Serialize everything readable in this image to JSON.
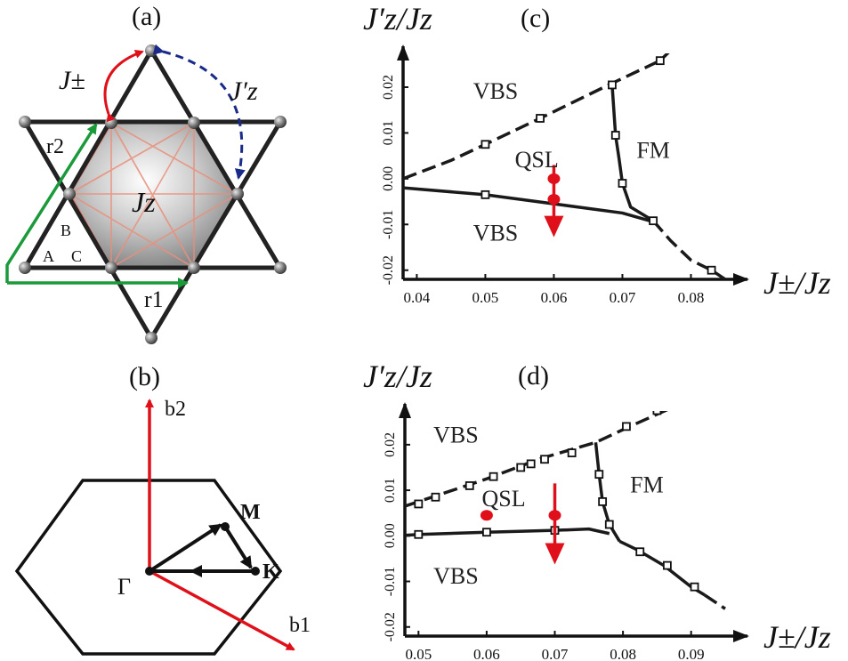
{
  "panels": {
    "a": "(a)",
    "b": "(b)",
    "c": "(c)",
    "d": "(d)"
  },
  "lattice": {
    "j_pm_label": "J±",
    "jz_prime_label": "J′z",
    "jz_label": "Jz",
    "r1_label": "r1",
    "r2_label": "r2",
    "site_a": "A",
    "site_b": "B",
    "site_c": "C"
  },
  "bz": {
    "b1_label": "b1",
    "b2_label": "b2",
    "gamma_label": "Γ",
    "m_label": "M",
    "k_label": "K"
  },
  "axis_labels": {
    "y_num": "J′z",
    "y_den": "Jz",
    "x_num": "J±",
    "x_den": "Jz"
  },
  "phases": {
    "vbs": "VBS",
    "qsl": "QSL",
    "fm": "FM"
  },
  "colors": {
    "red": "#e0101a",
    "green": "#1a9a3a",
    "blue": "#1a2a8a",
    "black": "#111111"
  },
  "chart_data": [
    {
      "id": "c",
      "type": "scatter",
      "xlim": [
        0.038,
        0.085
      ],
      "ylim": [
        -0.022,
        0.027
      ],
      "x_ticks": [
        "0.04",
        "0.05",
        "0.06",
        "0.07",
        "0.08"
      ],
      "x_tick_values": [
        0.04,
        0.05,
        0.06,
        0.07,
        0.08
      ],
      "y_ticks": [
        "-0.02",
        "-0.01",
        "0.00",
        "0.01",
        "0.02"
      ],
      "y_tick_values": [
        -0.02,
        -0.01,
        0.0,
        0.01,
        0.02
      ],
      "series": [
        {
          "style": "dashed",
          "points": [
            [
              0.038,
              0.0
            ],
            [
              0.045,
              0.004
            ],
            [
              0.05,
              0.0075
            ],
            [
              0.058,
              0.0132
            ],
            [
              0.068,
              0.0205
            ],
            [
              0.0755,
              0.0258
            ],
            [
              0.077,
              0.028
            ]
          ]
        },
        {
          "style": "solid",
          "points": [
            [
              0.038,
              -0.002
            ],
            [
              0.05,
              -0.0035
            ],
            [
              0.06,
              -0.0055
            ],
            [
              0.07,
              -0.0075
            ],
            [
              0.074,
              -0.0092
            ]
          ]
        },
        {
          "style": "solid",
          "points": [
            [
              0.0685,
              0.0205
            ],
            [
              0.069,
              0.0095
            ],
            [
              0.0695,
              0.0045
            ],
            [
              0.07,
              -0.001
            ],
            [
              0.0712,
              -0.0062
            ],
            [
              0.0745,
              -0.0092
            ]
          ]
        },
        {
          "style": "dashed",
          "points": [
            [
              0.0745,
              -0.0092
            ],
            [
              0.077,
              -0.0135
            ],
            [
              0.08,
              -0.0178
            ],
            [
              0.083,
              -0.02
            ],
            [
              0.085,
              -0.022
            ]
          ]
        }
      ],
      "markers": [
        [
          0.05,
          0.0075
        ],
        [
          0.058,
          0.0132
        ],
        [
          0.0685,
          0.0205
        ],
        [
          0.0755,
          0.0258
        ],
        [
          0.05,
          -0.0035
        ],
        [
          0.069,
          0.0095
        ],
        [
          0.07,
          -0.001
        ],
        [
          0.0745,
          -0.0092
        ],
        [
          0.083,
          -0.02
        ]
      ],
      "red_points": [
        [
          0.06,
          0.0
        ],
        [
          0.06,
          -0.0045
        ]
      ],
      "red_arrow": {
        "from": [
          0.06,
          0.003
        ],
        "to": [
          0.06,
          -0.012
        ]
      },
      "phase_labels": [
        {
          "text": "VBS",
          "x": 0.0515,
          "y": 0.0175
        },
        {
          "text": "QSL",
          "x": 0.0575,
          "y": 0.0025
        },
        {
          "text": "FM",
          "x": 0.0745,
          "y": 0.0045
        },
        {
          "text": "VBS",
          "x": 0.0515,
          "y": -0.0135
        }
      ]
    },
    {
      "id": "d",
      "type": "scatter",
      "xlim": [
        0.048,
        0.095
      ],
      "ylim": [
        -0.022,
        0.027
      ],
      "x_ticks": [
        "0.05",
        "0.06",
        "0.07",
        "0.08",
        "0.09"
      ],
      "x_tick_values": [
        0.05,
        0.06,
        0.07,
        0.08,
        0.09
      ],
      "y_ticks": [
        "-0.02",
        "-0.01",
        "0.00",
        "0.01",
        "0.02"
      ],
      "y_tick_values": [
        -0.02,
        -0.01,
        0.0,
        0.01,
        0.02
      ],
      "series": [
        {
          "style": "dashed",
          "points": [
            [
              0.048,
              0.0065
            ],
            [
              0.052,
              0.0085
            ],
            [
              0.06,
              0.0125
            ],
            [
              0.068,
              0.017
            ],
            [
              0.076,
              0.0205
            ],
            [
              0.081,
              0.024
            ],
            [
              0.087,
              0.028
            ]
          ]
        },
        {
          "style": "solid",
          "points": [
            [
              0.048,
              0.0001
            ],
            [
              0.05,
              0.0003
            ],
            [
              0.06,
              0.0008
            ],
            [
              0.07,
              0.0012
            ],
            [
              0.075,
              0.0015
            ],
            [
              0.078,
              0.0005
            ]
          ]
        },
        {
          "style": "solid",
          "points": [
            [
              0.076,
              0.0205
            ],
            [
              0.0765,
              0.0135
            ],
            [
              0.077,
              0.0075
            ],
            [
              0.078,
              0.0025
            ],
            [
              0.0795,
              -0.0012
            ]
          ]
        },
        {
          "style": "solid",
          "points": [
            [
              0.0795,
              -0.0012
            ],
            [
              0.082,
              -0.003
            ],
            [
              0.086,
              -0.0065
            ],
            [
              0.09,
              -0.0112
            ],
            [
              0.092,
              -0.013
            ]
          ]
        },
        {
          "style": "dashed",
          "points": [
            [
              0.092,
              -0.013
            ],
            [
              0.095,
              -0.016
            ]
          ]
        }
      ],
      "markers": [
        [
          0.05,
          0.007
        ],
        [
          0.0525,
          0.0085
        ],
        [
          0.0575,
          0.011
        ],
        [
          0.061,
          0.013
        ],
        [
          0.065,
          0.015
        ],
        [
          0.0665,
          0.0158
        ],
        [
          0.0685,
          0.0168
        ],
        [
          0.0725,
          0.0182
        ],
        [
          0.0805,
          0.024
        ],
        [
          0.085,
          0.0275
        ],
        [
          0.05,
          0.0003
        ],
        [
          0.06,
          0.0008
        ],
        [
          0.07,
          0.0012
        ],
        [
          0.0765,
          0.0135
        ],
        [
          0.077,
          0.0075
        ],
        [
          0.078,
          0.0025
        ],
        [
          0.0825,
          -0.0035
        ],
        [
          0.0865,
          -0.0065
        ],
        [
          0.0905,
          -0.0112
        ]
      ],
      "red_points": [
        [
          0.06,
          0.0045
        ],
        [
          0.07,
          0.0045
        ]
      ],
      "red_arrow": {
        "from": [
          0.07,
          0.0115
        ],
        "to": [
          0.07,
          -0.0055
        ]
      },
      "phase_labels": [
        {
          "text": "VBS",
          "x": 0.0555,
          "y": 0.0205
        },
        {
          "text": "QSL",
          "x": 0.0625,
          "y": 0.0065
        },
        {
          "text": "FM",
          "x": 0.0835,
          "y": 0.0095
        },
        {
          "text": "VBS",
          "x": 0.0555,
          "y": -0.0105
        }
      ]
    }
  ]
}
